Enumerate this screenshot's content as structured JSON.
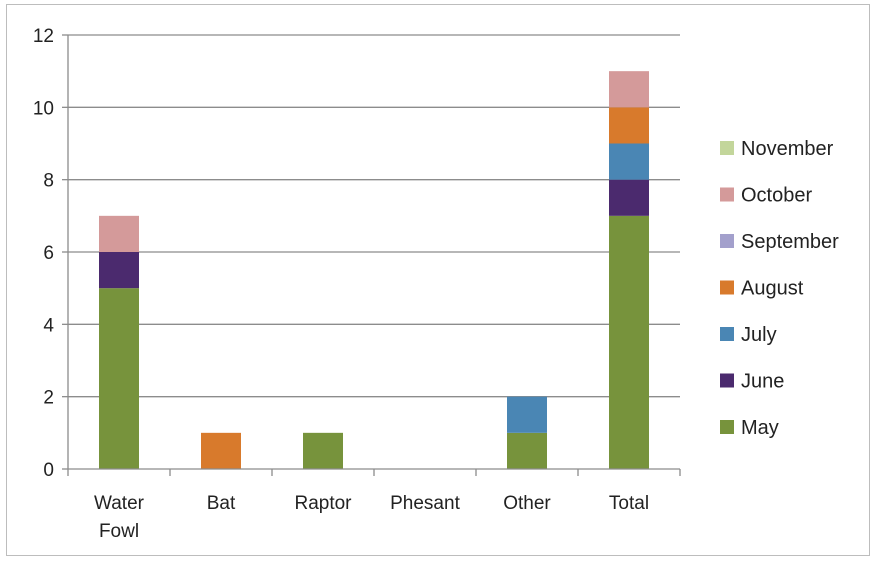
{
  "chart_data": {
    "type": "bar",
    "stacked": true,
    "categories": [
      [
        "Water",
        "Fowl"
      ],
      [
        "Bat"
      ],
      [
        "Raptor"
      ],
      [
        "Phesant"
      ],
      [
        "Other"
      ],
      [
        "Total"
      ]
    ],
    "series": [
      {
        "name": "May",
        "color": "#77933c",
        "values": [
          5,
          0,
          1,
          0,
          1,
          7
        ]
      },
      {
        "name": "June",
        "color": "#4b2a6e",
        "values": [
          1,
          0,
          0,
          0,
          0,
          1
        ]
      },
      {
        "name": "July",
        "color": "#4a86b4",
        "values": [
          0,
          0,
          0,
          0,
          1,
          1
        ]
      },
      {
        "name": "August",
        "color": "#d87a2c",
        "values": [
          0,
          1,
          0,
          0,
          0,
          1
        ]
      },
      {
        "name": "September",
        "color": "#a3a0cc",
        "values": [
          0,
          0,
          0,
          0,
          0,
          0
        ]
      },
      {
        "name": "October",
        "color": "#d49a9a",
        "values": [
          1,
          0,
          0,
          0,
          0,
          1
        ]
      },
      {
        "name": "November",
        "color": "#c3d69b",
        "values": [
          0,
          0,
          0,
          0,
          0,
          0
        ]
      }
    ],
    "ylim": [
      0,
      12
    ],
    "yticks": [
      0,
      2,
      4,
      6,
      8,
      10,
      12
    ],
    "grid": true,
    "legend_position": "right",
    "legend_order": [
      "November",
      "October",
      "September",
      "August",
      "July",
      "June",
      "May"
    ]
  }
}
